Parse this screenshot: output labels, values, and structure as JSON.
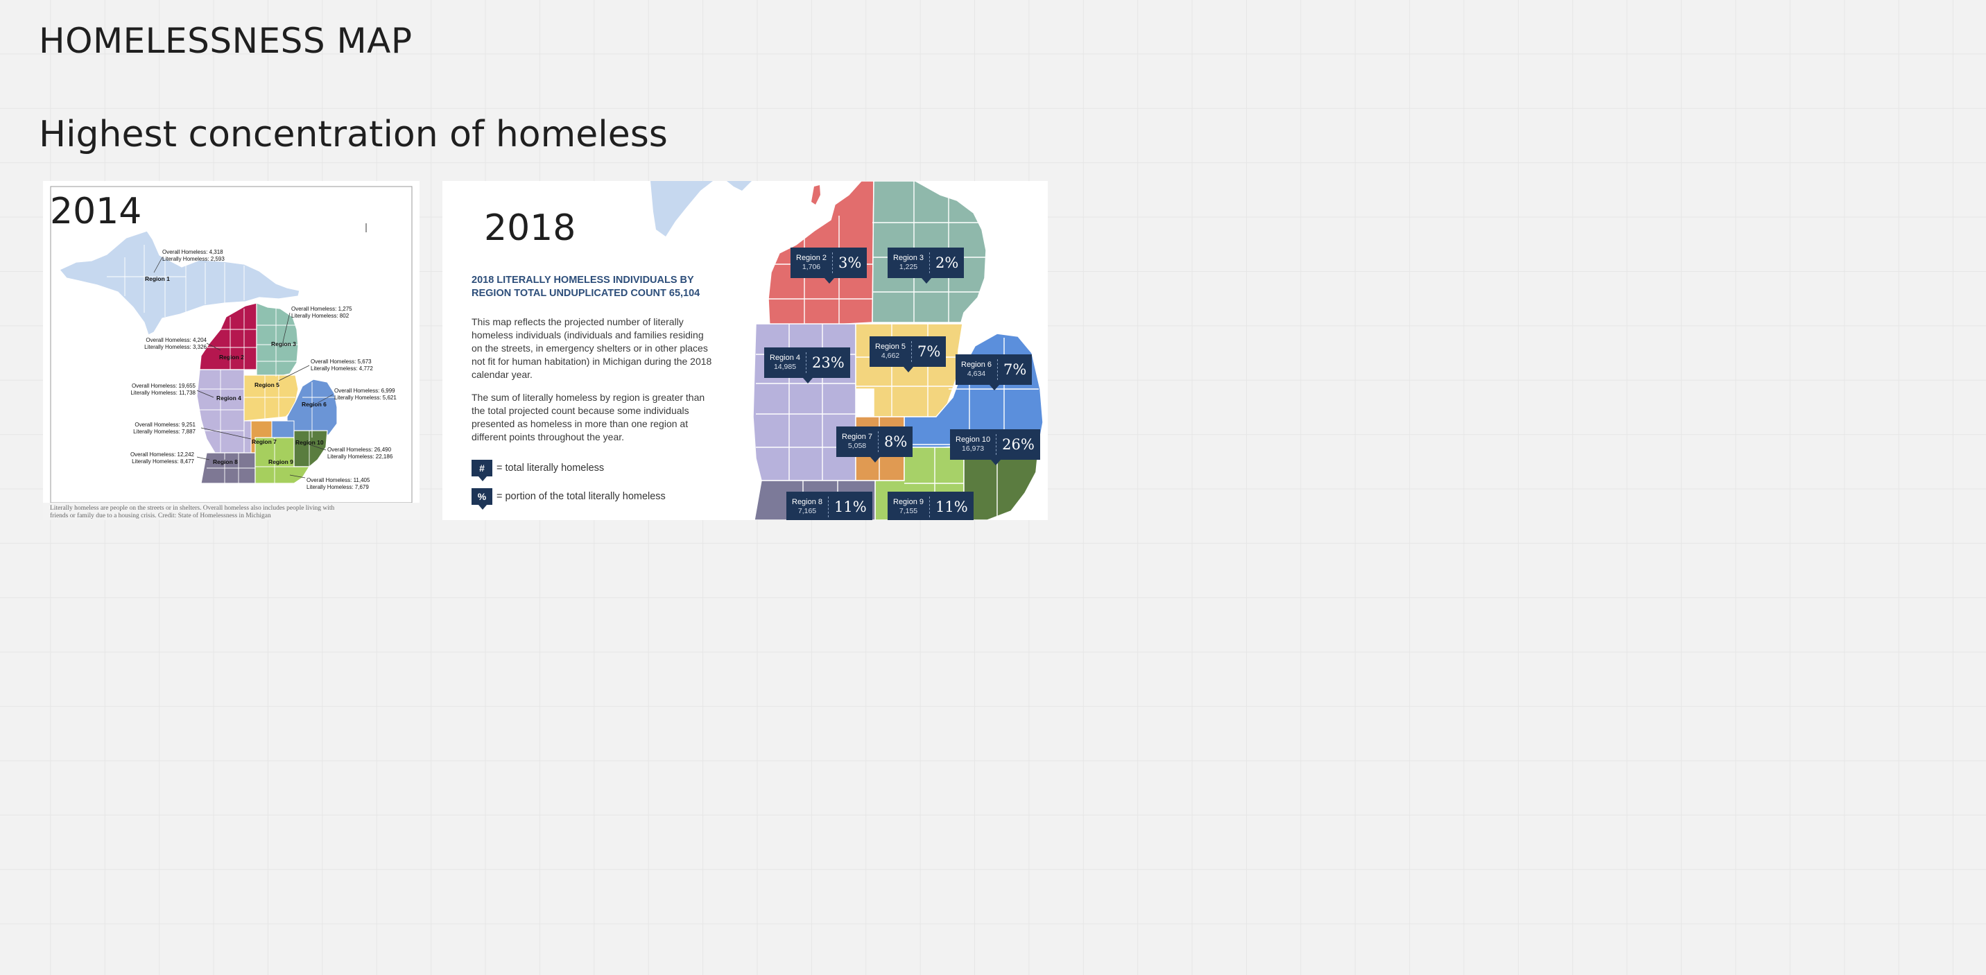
{
  "page": {
    "title": "HOMELESSNESS MAP",
    "subtitle": "Highest concentration of homeless"
  },
  "map_2014": {
    "year": "2014",
    "regions": [
      {
        "name": "Region 1",
        "overall": "Overall Homeless: 4,318",
        "literal": "Literally Homeless: 2,593"
      },
      {
        "name": "Region 2",
        "overall": "Overall Homeless: 4,204",
        "literal": "Literally Homeless: 3,326"
      },
      {
        "name": "Region 3",
        "overall": "Overall Homeless: 1,275",
        "literal": "Literally Homeless: 802"
      },
      {
        "name": "Region 4",
        "overall": "Overall Homeless: 19,655",
        "literal": "Literally Homeless: 11,738"
      },
      {
        "name": "Region 5",
        "overall": "Overall Homeless: 5,673",
        "literal": "Literally Homeless: 4,772"
      },
      {
        "name": "Region 6",
        "overall": "Overall Homeless: 6,999",
        "literal": "Literally Homeless: 5,621"
      },
      {
        "name": "Region 7",
        "overall": "Overall Homeless: 9,251",
        "literal": "Literally Homeless: 7,887"
      },
      {
        "name": "Region 8",
        "overall": "Overall Homeless: 12,242",
        "literal": "Literally Homeless: 8,477"
      },
      {
        "name": "Region 9",
        "overall": "Overall Homeless: 11,405",
        "literal": "Literally Homeless: 7,679"
      },
      {
        "name": "Region 10",
        "overall": "Overall Homeless: 26,490",
        "literal": "Literally Homeless: 22,186"
      }
    ],
    "caption_line1": "Literally homeless are people on the streets or in shelters. Overall homeless also includes people living with",
    "caption_line2": "friends or family due to a housing crisis. Credit: State of Homelessness in Michigan"
  },
  "map_2018": {
    "year": "2018",
    "legend_title": "2018 LITERALLY HOMELESS INDIVIDUALS BY REGION TOTAL UNDUPLICATED COUNT 65,104",
    "paragraph1": "This map reflects the projected number of literally homeless individuals (individuals and families residing on the streets, in emergency shelters or in other places not fit for human habitation) in Michigan during the 2018 calendar year.",
    "paragraph2": "The sum of literally homeless by region is greater than the total projected count because some individuals presented as homeless in more than one region at different points throughout the year.",
    "key_count_symbol": "#",
    "key_count_label": "= total literally homeless",
    "key_pct_symbol": "%",
    "key_pct_label": "= portion of the total literally homeless",
    "badges": [
      {
        "region": "Region 2",
        "count": "1,706",
        "pct": "3%"
      },
      {
        "region": "Region 3",
        "count": "1,225",
        "pct": "2%"
      },
      {
        "region": "Region 4",
        "count": "14,985",
        "pct": "23%"
      },
      {
        "region": "Region 5",
        "count": "4,662",
        "pct": "7%"
      },
      {
        "region": "Region 6",
        "count": "4,634",
        "pct": "7%"
      },
      {
        "region": "Region 7",
        "count": "5,058",
        "pct": "8%"
      },
      {
        "region": "Region 10",
        "count": "16,973",
        "pct": "26%"
      },
      {
        "region": "Region 8",
        "count": "7,165",
        "pct": "11%"
      },
      {
        "region": "Region 9",
        "count": "7,155",
        "pct": "11%"
      }
    ]
  },
  "colors": {
    "region1": "#c6d8ef",
    "region2": "#b5174f",
    "region3": "#8fc1b0",
    "region4": "#bdb5dc",
    "region5": "#f5d77a",
    "region6": "#6b95d6",
    "region7": "#e3a04c",
    "region8": "#7e7894",
    "region9": "#a6cf5e",
    "region10": "#5a7d3f",
    "badge": "#1d3557"
  }
}
